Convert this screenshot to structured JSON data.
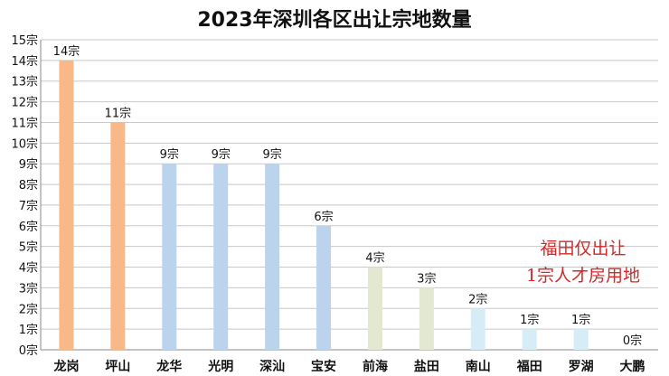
{
  "chart_data": {
    "type": "bar",
    "title": "2023年深圳各区出让宗地数量",
    "xlabel": "",
    "ylabel": "",
    "unit": "宗",
    "ylim": [
      0,
      15
    ],
    "y_tick_labels": [
      "0宗",
      "1宗",
      "2宗",
      "3宗",
      "4宗",
      "5宗",
      "6宗",
      "7宗",
      "8宗",
      "9宗",
      "10宗",
      "11宗",
      "12宗",
      "13宗",
      "14宗",
      "15宗"
    ],
    "categories": [
      "龙岗",
      "坪山",
      "龙华",
      "光明",
      "深汕",
      "宝安",
      "前海",
      "盐田",
      "南山",
      "福田",
      "罗湖",
      "大鹏"
    ],
    "values": [
      14,
      11,
      9,
      9,
      9,
      6,
      4,
      3,
      2,
      1,
      1,
      0
    ],
    "data_labels": [
      "14宗",
      "11宗",
      "9宗",
      "9宗",
      "9宗",
      "6宗",
      "4宗",
      "3宗",
      "2宗",
      "1宗",
      "1宗",
      "0宗"
    ],
    "bar_colors": [
      "#f8b888",
      "#f8b888",
      "#bcd3ee",
      "#bcd3ee",
      "#bcd3ee",
      "#bcd3ee",
      "#e3e8d2",
      "#e3e8d2",
      "#d6ecf6",
      "#d6ecf6",
      "#d6ecf6",
      "#d6ecf6"
    ],
    "grid": true,
    "annotations": [
      "福田仅出让",
      "1宗人才房用地"
    ],
    "annotation_color": "#d62828"
  }
}
